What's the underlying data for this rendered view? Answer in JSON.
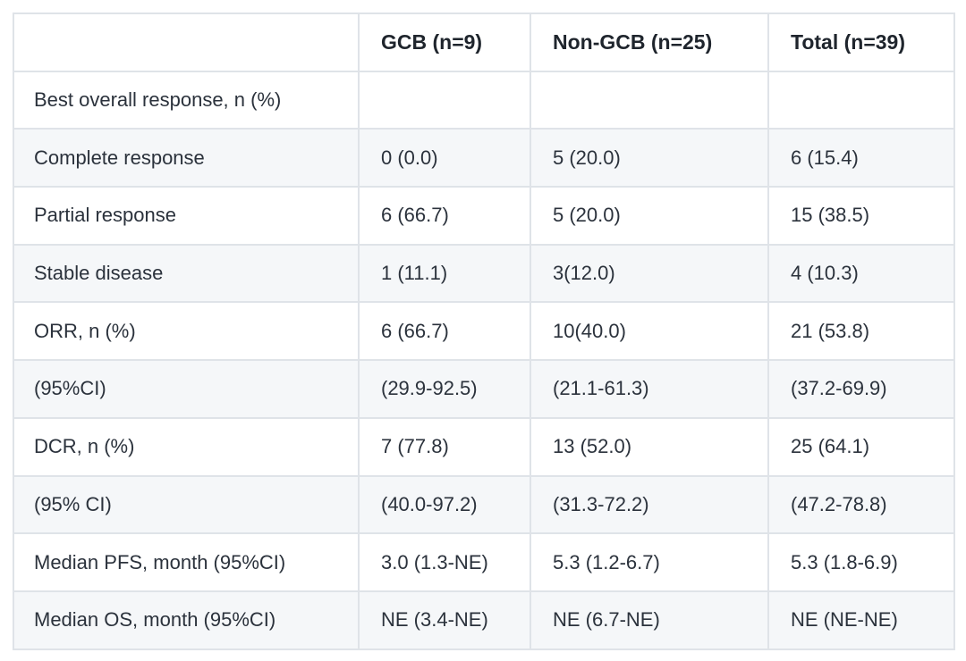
{
  "table": {
    "columns": [
      "",
      "GCB (n=9)",
      "Non-GCB (n=25)",
      "Total (n=39)"
    ],
    "rows": [
      {
        "label": "Best overall response, n (%)",
        "values": [
          "",
          "",
          ""
        ]
      },
      {
        "label": "Complete response",
        "values": [
          "0 (0.0)",
          "5 (20.0)",
          "6 (15.4)"
        ]
      },
      {
        "label": "Partial response",
        "values": [
          "6 (66.7)",
          "5 (20.0)",
          "15 (38.5)"
        ]
      },
      {
        "label": "Stable disease",
        "values": [
          "1 (11.1)",
          "3(12.0)",
          "4 (10.3)"
        ]
      },
      {
        "label": "ORR, n (%)",
        "values": [
          "6 (66.7)",
          "10(40.0)",
          "21 (53.8)"
        ]
      },
      {
        "label": "(95%CI)",
        "values": [
          "(29.9-92.5)",
          "(21.1-61.3)",
          "(37.2-69.9)"
        ]
      },
      {
        "label": "DCR, n (%)",
        "values": [
          "7 (77.8)",
          "13 (52.0)",
          "25 (64.1)"
        ]
      },
      {
        "label": "(95% CI)",
        "values": [
          "(40.0-97.2)",
          "(31.3-72.2)",
          "(47.2-78.8)"
        ]
      },
      {
        "label": "Median PFS, month (95%CI)",
        "values": [
          "3.0 (1.3-NE)",
          "5.3 (1.2-6.7)",
          "5.3 (1.8-6.9)"
        ]
      },
      {
        "label": "Median OS, month (95%CI)",
        "values": [
          "NE (3.4-NE)",
          "NE (6.7-NE)",
          "NE (NE-NE)"
        ]
      }
    ],
    "colors": {
      "stripe_background": "#f5f7f9",
      "row_background": "#ffffff",
      "border": "#dfe3e8",
      "body_text": "#2b323c",
      "header_text": "#1f252d"
    }
  }
}
